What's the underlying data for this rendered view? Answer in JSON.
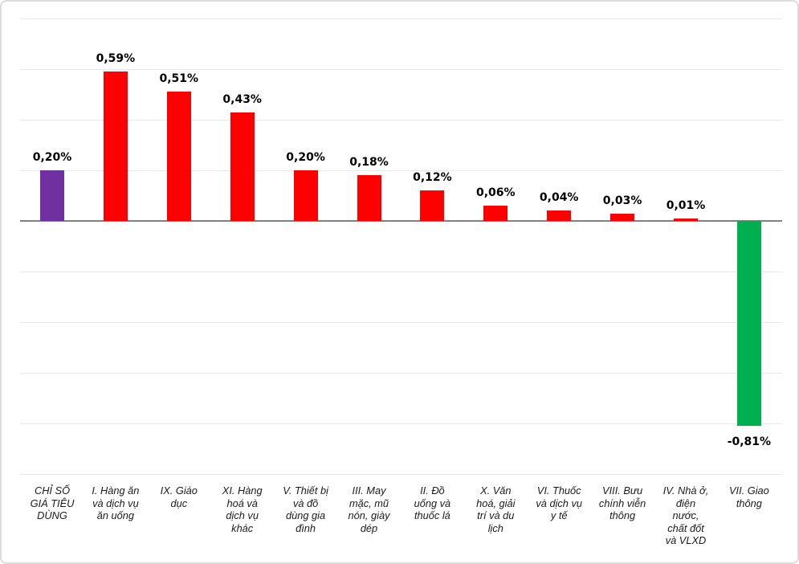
{
  "chart_data": {
    "type": "bar",
    "title": "",
    "xlabel": "",
    "ylabel": "",
    "unit": "%",
    "decimal_separator": ",",
    "categories": [
      "CHỈ SỐ GIÁ TIÊU DÙNG",
      "I. Hàng ăn và dịch vụ ăn uống",
      "IX. Giáo dục",
      "XI. Hàng hoá và dịch vụ khác",
      "V. Thiết bị và đồ dùng gia đình",
      "III. May mặc, mũ nón, giày dép",
      "II. Đồ uống và thuốc lá",
      "X. Văn hoá, giải trí và du lịch",
      "VI. Thuốc và dịch vụ y tế",
      "VIII. Bưu chính viễn thông",
      "IV. Nhà ở, điện nước, chất đốt và VLXD",
      "VII. Giao thông"
    ],
    "tick_label_lines": [
      "CHỈ SỐ\nGIÁ TIÊU\nDÙNG",
      "I. Hàng ăn\nvà dịch vụ\năn uống",
      "IX. Giáo\ndục",
      "XI. Hàng\nhoá và\ndịch vụ\nkhác",
      "V. Thiết bị\nvà đồ\ndùng gia\nđình",
      "III. May\nmặc, mũ\nnón, giày\ndép",
      "II. Đồ\nuống và\nthuốc lá",
      "X. Văn\nhoá, giải\ntrí và du\nlịch",
      "VI. Thuốc\nvà dịch vụ\ny tế",
      "VIII. Bưu\nchính viễn\nthông",
      "IV. Nhà ở,\nđiện\nnước,\nchất đốt\nvà VLXD",
      "VII. Giao\nthông"
    ],
    "values": [
      0.2,
      0.59,
      0.51,
      0.43,
      0.2,
      0.18,
      0.12,
      0.06,
      0.04,
      0.03,
      0.01,
      -0.81
    ],
    "value_labels": [
      "0,20%",
      "0,59%",
      "0,51%",
      "0,43%",
      "0,20%",
      "0,18%",
      "0,12%",
      "0,06%",
      "0,04%",
      "0,03%",
      "0,01%",
      "-0,81%"
    ],
    "bar_colors": [
      "#7030A0",
      "#FF0000",
      "#FF0000",
      "#FF0000",
      "#FF0000",
      "#FF0000",
      "#FF0000",
      "#FF0000",
      "#FF0000",
      "#FF0000",
      "#FF0000",
      "#00B050"
    ],
    "ylim": [
      -1.0,
      0.8
    ],
    "grid_step": 0.2,
    "grid": true,
    "legend": "none",
    "colors": {
      "gridline": "#E8E8E8",
      "axis": "#808080",
      "value_label_text": "#000000",
      "category_label_text": "#1a1a1a",
      "frame_border": "#DCDCDC",
      "background": "#FFFFFF"
    }
  }
}
